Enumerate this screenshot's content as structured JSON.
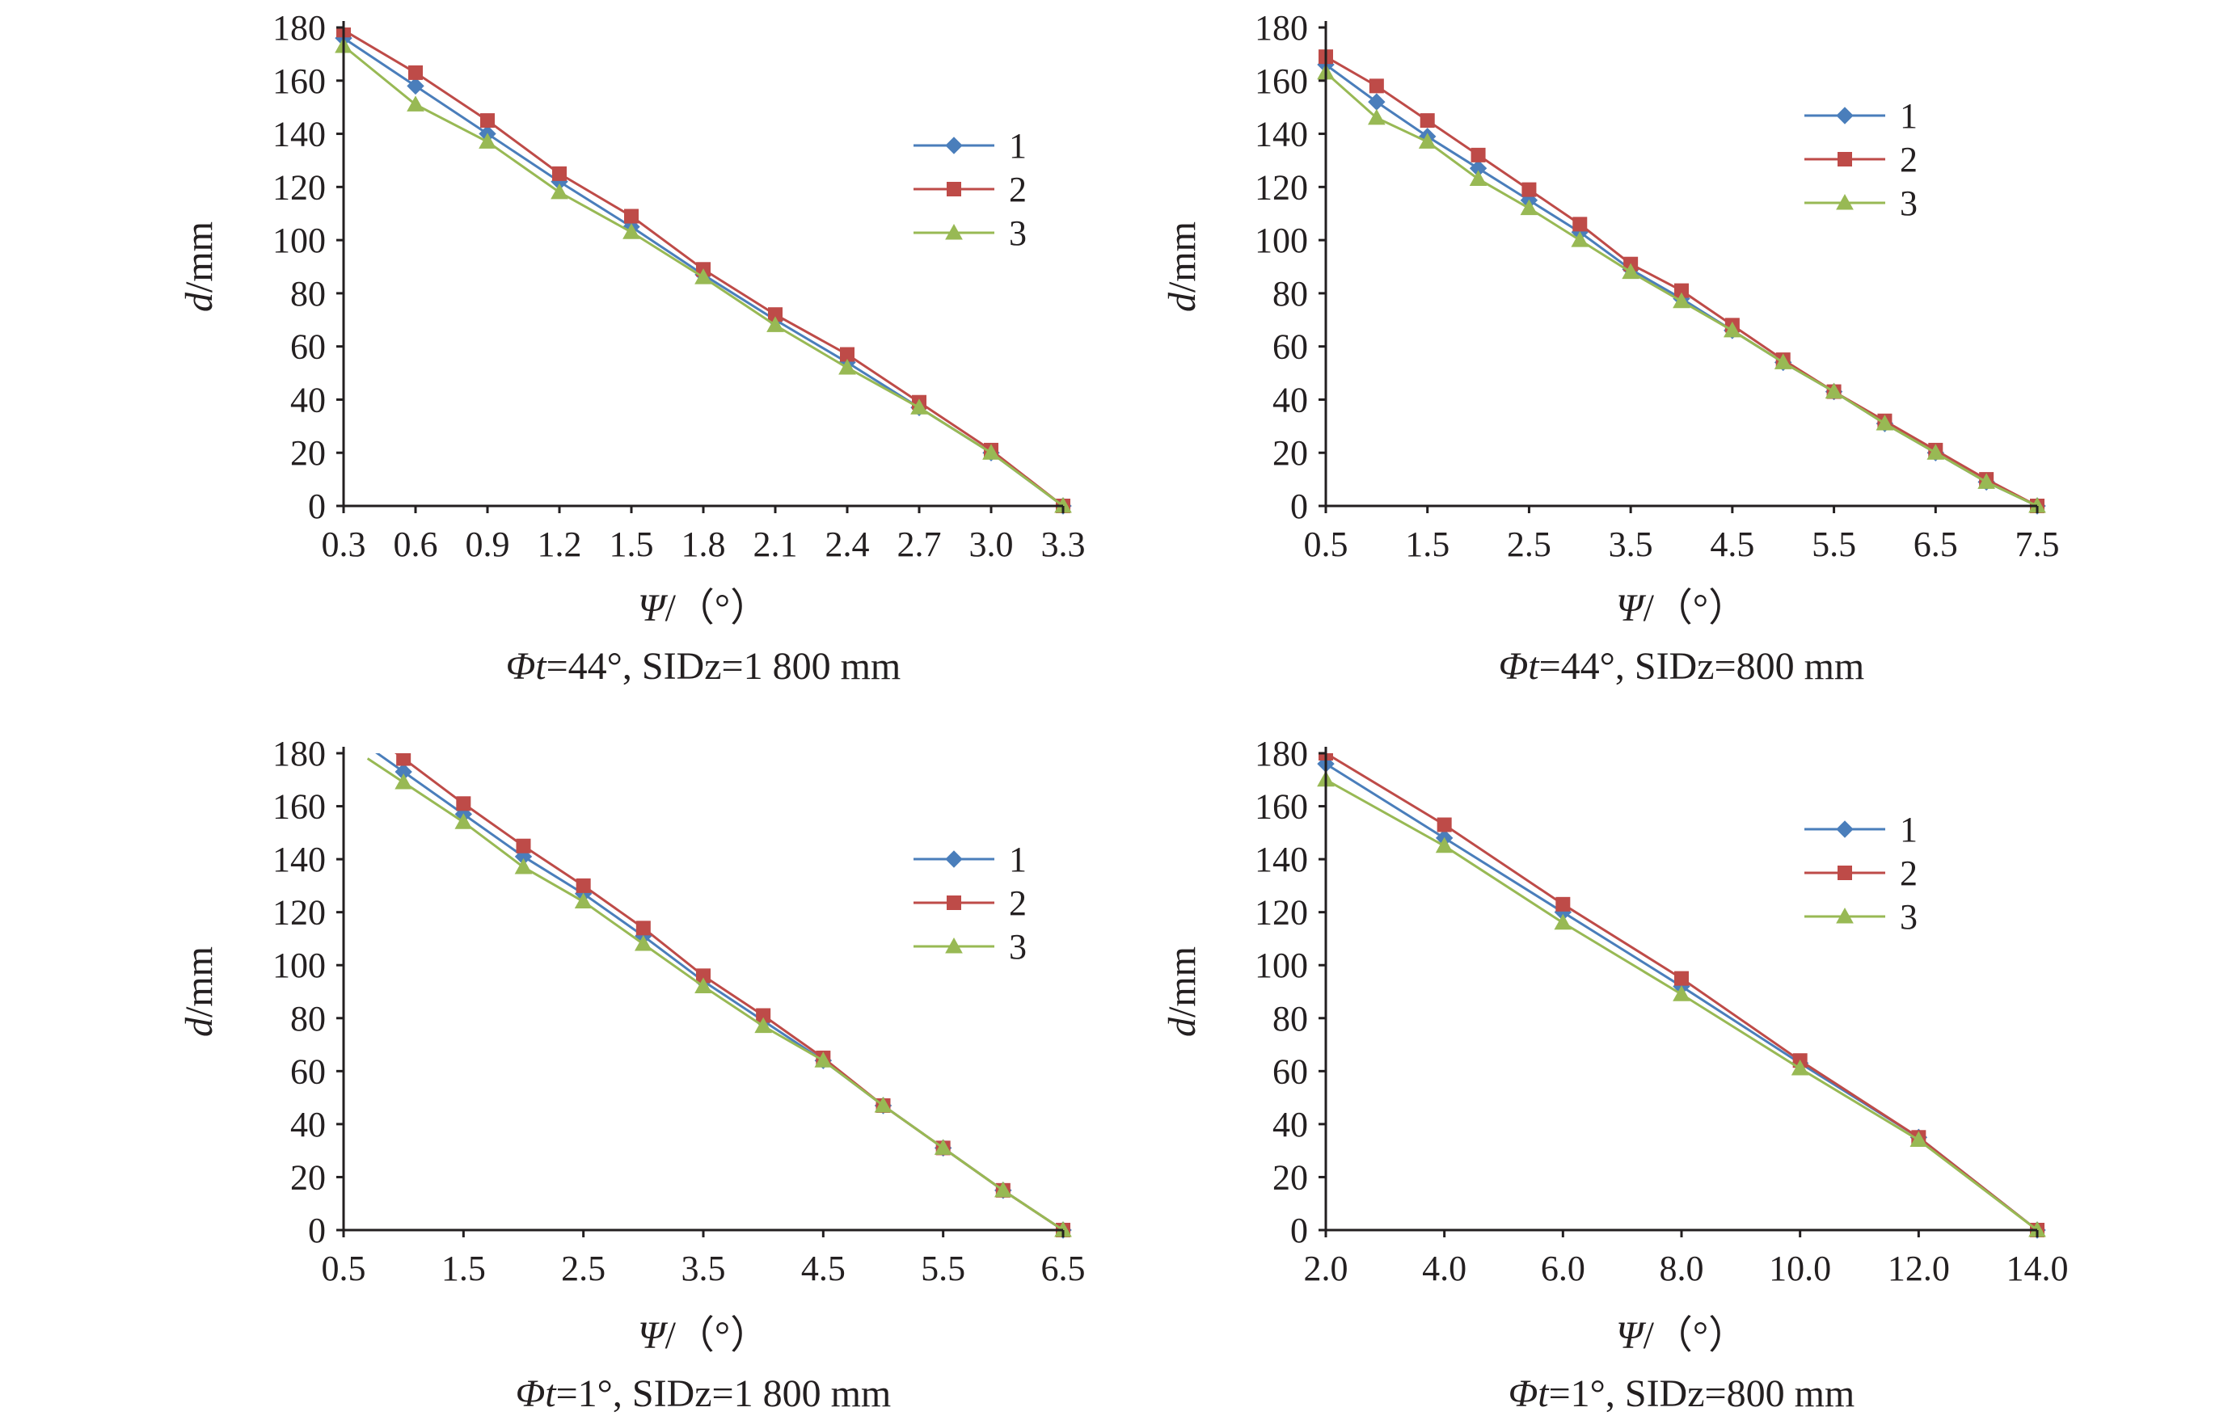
{
  "figure": {
    "colors": {
      "series_1": "#4a7ebb",
      "series_2": "#be4b48",
      "series_3": "#98b954",
      "axis": "#231f20"
    },
    "markers": {
      "series_1": "diamond",
      "series_2": "square",
      "series_3": "triangle"
    }
  },
  "chart_data": [
    {
      "type": "line",
      "caption_parts": [
        "Φt",
        "=44°, SIDz=1 800 mm"
      ],
      "xlabel_parts": [
        "Ψ",
        "/（°）"
      ],
      "ylabel_parts": [
        "d",
        "/mm"
      ],
      "x_ticks": [
        "0.3",
        "0.6",
        "0.9",
        "1.2",
        "1.5",
        "1.8",
        "2.1",
        "2.4",
        "2.7",
        "3.0",
        "3.3"
      ],
      "xlim": [
        0.3,
        3.3
      ],
      "ylim": [
        0,
        180
      ],
      "y_ticks": [
        "0",
        "20",
        "40",
        "60",
        "80",
        "100",
        "120",
        "140",
        "160",
        "180"
      ],
      "grid": false,
      "legend_position": "right",
      "series": [
        {
          "name": "1",
          "x": [
            0.3,
            0.6,
            0.9,
            1.2,
            1.5,
            1.8,
            2.1,
            2.4,
            2.7,
            3.0,
            3.3
          ],
          "values": [
            176,
            158,
            140,
            122,
            105,
            87,
            70,
            54,
            37,
            20,
            0
          ]
        },
        {
          "name": "2",
          "x": [
            0.3,
            0.6,
            0.9,
            1.2,
            1.5,
            1.8,
            2.1,
            2.4,
            2.7,
            3.0,
            3.3
          ],
          "values": [
            179,
            163,
            145,
            125,
            109,
            89,
            72,
            57,
            39,
            21,
            0
          ]
        },
        {
          "name": "3",
          "x": [
            0.3,
            0.6,
            0.9,
            1.2,
            1.5,
            1.8,
            2.1,
            2.4,
            2.7,
            3.0,
            3.3
          ],
          "values": [
            173,
            151,
            137,
            118,
            103,
            86,
            68,
            52,
            37,
            20,
            0
          ]
        }
      ]
    },
    {
      "type": "line",
      "caption_parts": [
        "Φt",
        "=44°, SIDz=800 mm"
      ],
      "xlabel_parts": [
        "Ψ",
        "/（°）"
      ],
      "ylabel_parts": [
        "d",
        "/mm"
      ],
      "x_ticks": [
        "0.5",
        "1.5",
        "2.5",
        "3.5",
        "4.5",
        "5.5",
        "6.5",
        "7.5"
      ],
      "xlim": [
        0.5,
        7.5
      ],
      "ylim": [
        0,
        180
      ],
      "y_ticks": [
        "0",
        "20",
        "40",
        "60",
        "80",
        "100",
        "120",
        "140",
        "160",
        "180"
      ],
      "grid": false,
      "legend_position": "top-right",
      "series": [
        {
          "name": "1",
          "x": [
            0.5,
            1.0,
            1.5,
            2.0,
            2.5,
            3.0,
            3.5,
            4.0,
            4.5,
            5.0,
            5.5,
            6.0,
            6.5,
            7.0,
            7.5
          ],
          "values": [
            166,
            152,
            139,
            127,
            115,
            103,
            89,
            78,
            66,
            54,
            43,
            31,
            20,
            9,
            0
          ]
        },
        {
          "name": "2",
          "x": [
            0.5,
            1.0,
            1.5,
            2.0,
            2.5,
            3.0,
            3.5,
            4.0,
            4.5,
            5.0,
            5.5,
            6.0,
            6.5,
            7.0,
            7.5
          ],
          "values": [
            169,
            158,
            145,
            132,
            119,
            106,
            91,
            81,
            68,
            55,
            43,
            32,
            21,
            10,
            0
          ]
        },
        {
          "name": "3",
          "x": [
            0.5,
            1.0,
            1.5,
            2.0,
            2.5,
            3.0,
            3.5,
            4.0,
            4.5,
            5.0,
            5.5,
            6.0,
            6.5,
            7.0,
            7.5
          ],
          "values": [
            163,
            146,
            137,
            123,
            112,
            100,
            88,
            77,
            66,
            54,
            43,
            31,
            20,
            9,
            0
          ]
        }
      ]
    },
    {
      "type": "line",
      "caption_parts": [
        "Φt",
        "=1°, SIDz=1 800 mm"
      ],
      "xlabel_parts": [
        "Ψ",
        "/（°）"
      ],
      "ylabel_parts": [
        "d",
        "/mm"
      ],
      "x_ticks": [
        "0.5",
        "1.5",
        "2.5",
        "3.5",
        "4.5",
        "5.5",
        "6.5"
      ],
      "xlim": [
        0.5,
        6.5
      ],
      "ylim": [
        0,
        180
      ],
      "y_ticks": [
        "0",
        "20",
        "40",
        "60",
        "80",
        "100",
        "120",
        "140",
        "160",
        "180"
      ],
      "grid": false,
      "legend_position": "right",
      "series": [
        {
          "name": "1",
          "x": [
            1.0,
            1.5,
            2.0,
            2.5,
            3.0,
            3.5,
            4.0,
            4.5,
            5.0,
            5.5,
            6.0,
            6.5
          ],
          "values": [
            173,
            157,
            141,
            127,
            111,
            94,
            79,
            64,
            47,
            31,
            15,
            0
          ]
        },
        {
          "name": "2",
          "x": [
            1.0,
            1.5,
            2.0,
            2.5,
            3.0,
            3.5,
            4.0,
            4.5,
            5.0,
            5.5,
            6.0,
            6.5
          ],
          "values": [
            178,
            161,
            145,
            130,
            114,
            96,
            81,
            65,
            47,
            31,
            15,
            0
          ]
        },
        {
          "name": "3",
          "x": [
            1.0,
            1.5,
            2.0,
            2.5,
            3.0,
            3.5,
            4.0,
            4.5,
            5.0,
            5.5,
            6.0,
            6.5
          ],
          "values": [
            169,
            154,
            137,
            124,
            108,
            92,
            77,
            64,
            47,
            31,
            15,
            0
          ]
        }
      ]
    },
    {
      "type": "line",
      "caption_parts": [
        "Φt",
        "=1°, SIDz=800 mm"
      ],
      "xlabel_parts": [
        "Ψ",
        "/（°）"
      ],
      "ylabel_parts": [
        "d",
        "/mm"
      ],
      "x_ticks": [
        "2.0",
        "4.0",
        "6.0",
        "8.0",
        "10.0",
        "12.0",
        "14.0"
      ],
      "xlim": [
        2.0,
        14.0
      ],
      "ylim": [
        0,
        180
      ],
      "y_ticks": [
        "0",
        "20",
        "40",
        "60",
        "80",
        "100",
        "120",
        "140",
        "160",
        "180"
      ],
      "grid": false,
      "legend_position": "top-right",
      "series": [
        {
          "name": "1",
          "x": [
            2.0,
            4.0,
            6.0,
            8.0,
            10.0,
            12.0,
            14.0
          ],
          "values": [
            176,
            148,
            120,
            92,
            63,
            35,
            0
          ]
        },
        {
          "name": "2",
          "x": [
            2.0,
            4.0,
            6.0,
            8.0,
            10.0,
            12.0,
            14.0
          ],
          "values": [
            180,
            153,
            123,
            95,
            64,
            35,
            0
          ]
        },
        {
          "name": "3",
          "x": [
            2.0,
            4.0,
            6.0,
            8.0,
            10.0,
            12.0,
            14.0
          ],
          "values": [
            170,
            145,
            116,
            89,
            61,
            34,
            0
          ]
        }
      ]
    }
  ]
}
